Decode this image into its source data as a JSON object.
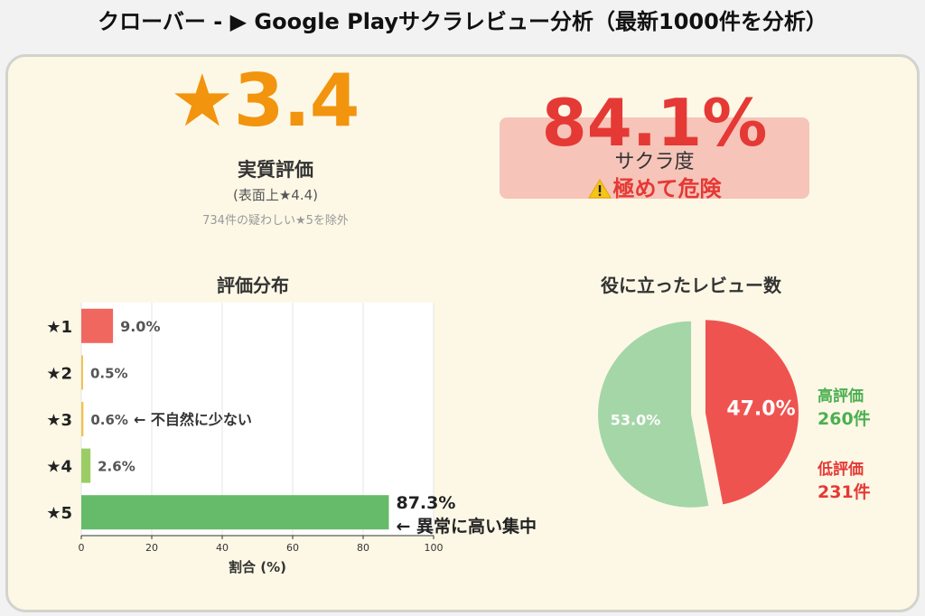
{
  "title": "クローバー - ▶ Google Playサクラレビュー分析（最新1000件を分析）",
  "rating": {
    "score": "★3.4",
    "label": "実質評価",
    "surface": "(表面上★4.4)",
    "note": "734件の疑わしい★5を除外"
  },
  "sakura": {
    "percent": "84.1%",
    "label": "サクラ度",
    "risk": "極めて危険",
    "warning_icon": "warning-icon"
  },
  "chart_data": [
    {
      "type": "bar",
      "orientation": "horizontal",
      "title": "評価分布",
      "xlabel": "割合 (%)",
      "ylabel": "",
      "xlim": [
        0,
        100
      ],
      "xticks": [
        "0",
        "20",
        "40",
        "60",
        "80",
        "100"
      ],
      "grid": true,
      "categories": [
        "★1",
        "★2",
        "★3",
        "★4",
        "★5"
      ],
      "values": [
        9.0,
        0.5,
        0.6,
        2.6,
        87.3
      ],
      "value_labels": [
        "9.0%",
        "0.5%",
        "0.6%",
        "2.6%",
        "87.3%"
      ],
      "colors": [
        "#f0675f",
        "#f2c14e",
        "#f2c14e",
        "#9ccc65",
        "#66bb6a"
      ],
      "annotations": [
        {
          "category": "★3",
          "text": "← 不自然に少ない"
        },
        {
          "category": "★5",
          "text": "← 異常に高い集中"
        }
      ]
    },
    {
      "type": "pie",
      "title": "役に立ったレビュー数",
      "slices": [
        {
          "name": "高評価",
          "count": "260件",
          "value": 53.0,
          "label": "53.0%",
          "color": "#a5d6a7"
        },
        {
          "name": "低評価",
          "count": "231件",
          "value": 47.0,
          "label": "47.0%",
          "color": "#ef5350"
        }
      ],
      "legend_placement": "right"
    }
  ]
}
